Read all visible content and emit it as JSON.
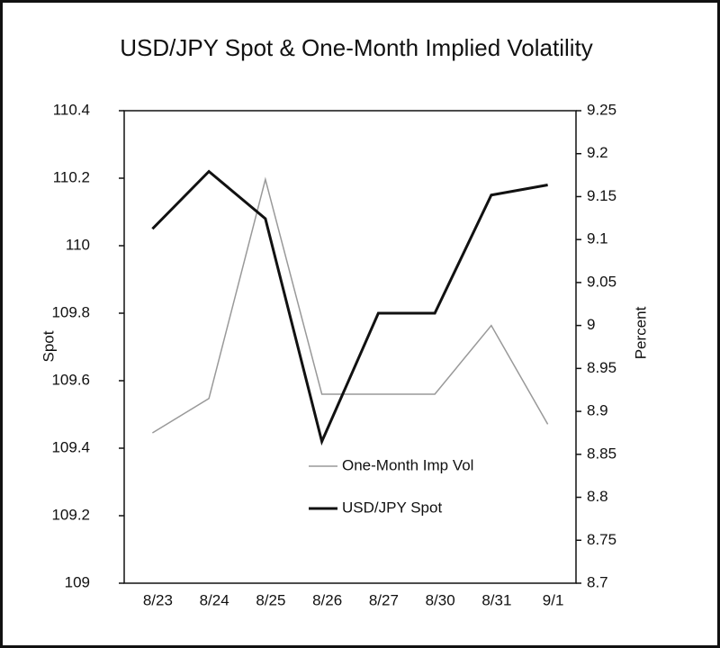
{
  "chart_data": {
    "type": "line",
    "title": "USD/JPY Spot & One-Month Implied Volatility",
    "y_label": "Spot",
    "y2_label": "Percent",
    "categories": [
      "8/23",
      "8/24",
      "8/25",
      "8/26",
      "8/27",
      "8/30",
      "8/31",
      "9/1"
    ],
    "series": [
      {
        "name": "One-Month Imp Vol",
        "color": "#999999",
        "width": 1.5,
        "axis": "y2",
        "values": [
          8.875,
          8.915,
          9.17,
          8.92,
          8.92,
          8.92,
          9.0,
          8.885
        ]
      },
      {
        "name": "USD/JPY Spot",
        "color": "#111111",
        "width": 3,
        "values": [
          110.05,
          110.22,
          110.08,
          109.42,
          109.8,
          109.8,
          110.15,
          110.18
        ]
      }
    ],
    "ylim": [
      109,
      110.4
    ],
    "yticks": [
      109,
      109.2,
      109.4,
      109.6,
      109.8,
      110,
      110.2,
      110.4
    ],
    "y2lim": [
      8.7,
      9.25
    ],
    "y2ticks": [
      8.7,
      8.75,
      8.8,
      8.85,
      8.9,
      8.95,
      9,
      9.05,
      9.1,
      9.15,
      9.2,
      9.25
    ],
    "grid": false
  }
}
